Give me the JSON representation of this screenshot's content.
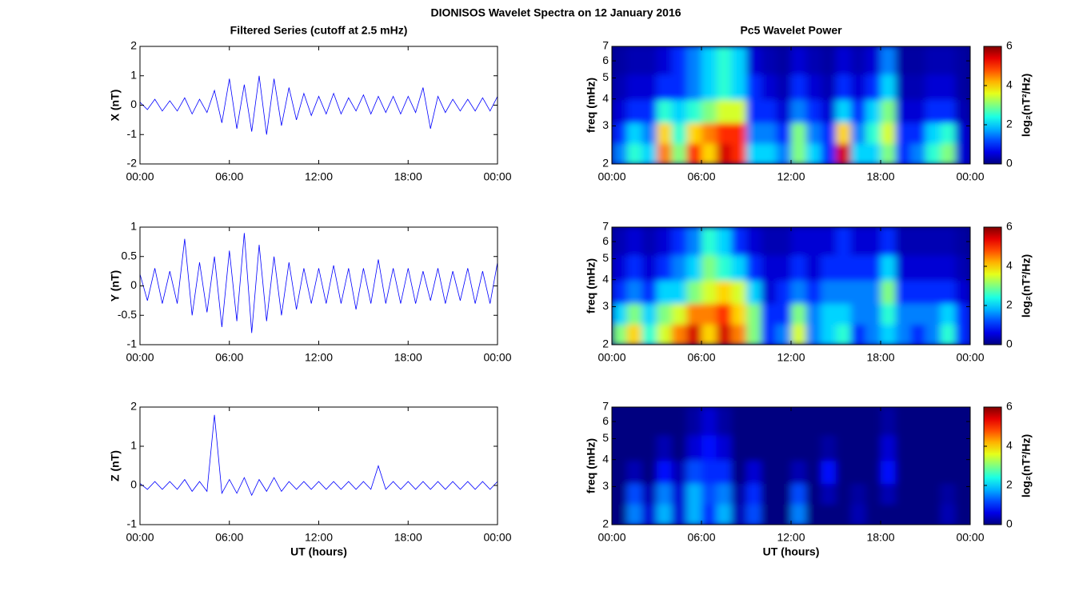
{
  "title": "DIONISOS Wavelet Spectra on 12 January 2016",
  "chart_data": [
    {
      "type": "line",
      "title": "Filtered Series (cutoff at 2.5 mHz)",
      "ylabel": "X (nT)",
      "color": "#0000ff",
      "xlim": [
        0,
        24
      ],
      "xticks": [
        {
          "value": 0,
          "label": "00:00"
        },
        {
          "value": 6,
          "label": "06:00"
        },
        {
          "value": 12,
          "label": "12:00"
        },
        {
          "value": 18,
          "label": "18:00"
        },
        {
          "value": 24,
          "label": "00:00"
        }
      ],
      "ylim": [
        -2,
        2
      ],
      "yticks": [
        -2,
        -1,
        0,
        1,
        2
      ],
      "x": [
        0,
        0.5,
        1,
        1.5,
        2,
        2.5,
        3,
        3.5,
        4,
        4.5,
        5,
        5.5,
        6,
        6.5,
        7,
        7.5,
        8,
        8.5,
        9,
        9.5,
        10,
        10.5,
        11,
        11.5,
        12,
        12.5,
        13,
        13.5,
        14,
        14.5,
        15,
        15.5,
        16,
        16.5,
        17,
        17.5,
        18,
        18.5,
        19,
        19.5,
        20,
        20.5,
        21,
        21.5,
        22,
        22.5,
        23,
        23.5,
        24
      ],
      "values": [
        0.1,
        -0.15,
        0.2,
        -0.2,
        0.15,
        -0.2,
        0.25,
        -0.3,
        0.2,
        -0.25,
        0.5,
        -0.6,
        0.9,
        -0.8,
        0.7,
        -0.9,
        1.0,
        -1.0,
        0.9,
        -0.7,
        0.6,
        -0.5,
        0.4,
        -0.35,
        0.3,
        -0.3,
        0.4,
        -0.3,
        0.25,
        -0.2,
        0.35,
        -0.3,
        0.3,
        -0.25,
        0.3,
        -0.3,
        0.3,
        -0.25,
        0.6,
        -0.8,
        0.3,
        -0.25,
        0.2,
        -0.2,
        0.2,
        -0.2,
        0.25,
        -0.2,
        0.3
      ]
    },
    {
      "type": "heatmap",
      "title": "Pc5 Wavelet Power",
      "ylabel": "freq (mHz)",
      "log_y": true,
      "colormap": "jet",
      "xlim": [
        0,
        24
      ],
      "xticks": [
        {
          "value": 0,
          "label": "00:00"
        },
        {
          "value": 6,
          "label": "06:00"
        },
        {
          "value": 12,
          "label": "12:00"
        },
        {
          "value": 18,
          "label": "18:00"
        },
        {
          "value": 24,
          "label": "00:00"
        }
      ],
      "ylim": [
        2,
        7
      ],
      "yticks": [
        2,
        3,
        4,
        5,
        6,
        7
      ],
      "x": [
        0.5,
        1.5,
        2.5,
        3.5,
        4.5,
        5.5,
        6.5,
        7.5,
        8.5,
        9.5,
        10.5,
        11.5,
        12.5,
        13.5,
        14.5,
        15.5,
        16.5,
        17.5,
        18.5,
        19.5,
        20.5,
        21.5,
        22.5,
        23.5
      ],
      "y": [
        2.25,
        2.75,
        3.5,
        4.5,
        6
      ],
      "z": [
        [
          1.5,
          2.5,
          2,
          4.5,
          3,
          5,
          4,
          5.5,
          5,
          2,
          2,
          1.5,
          3,
          2,
          1,
          5.5,
          2,
          2,
          3,
          1,
          1.5,
          2.5,
          3,
          0.5
        ],
        [
          1,
          2,
          1.5,
          4,
          2.5,
          4,
          4.5,
          5,
          5,
          1.5,
          1.5,
          1,
          3,
          1.5,
          1,
          4,
          1.5,
          2.5,
          3.5,
          1,
          1,
          2,
          2.5,
          0.5
        ],
        [
          0.5,
          1,
          1,
          2.5,
          2,
          2.5,
          3,
          3.5,
          3.5,
          1,
          1,
          0.5,
          1.5,
          1,
          0.5,
          2,
          1,
          2,
          3,
          0.5,
          0.5,
          1,
          1,
          0.3
        ],
        [
          0.3,
          0.5,
          0.5,
          1,
          1,
          1.5,
          2,
          2.5,
          2,
          1,
          0.5,
          0.3,
          1,
          0.5,
          0.3,
          1,
          0.5,
          1,
          2,
          0.3,
          0.3,
          0.5,
          0.5,
          0.2
        ],
        [
          0.2,
          0.3,
          0.3,
          0.5,
          1,
          1.5,
          2,
          2.5,
          2,
          0.5,
          0.3,
          0.2,
          0.5,
          0.3,
          0.2,
          0.5,
          0.3,
          0.5,
          1.5,
          0.2,
          0.2,
          0.3,
          0.3,
          0.2
        ]
      ],
      "colorbar": {
        "label": "log₂(nT²/Hz)",
        "clim": [
          0,
          6
        ],
        "ticks": [
          0,
          2,
          4,
          6
        ]
      }
    },
    {
      "type": "line",
      "ylabel": "Y (nT)",
      "color": "#0000ff",
      "xlim": [
        0,
        24
      ],
      "xticks": [
        {
          "value": 0,
          "label": "00:00"
        },
        {
          "value": 6,
          "label": "06:00"
        },
        {
          "value": 12,
          "label": "12:00"
        },
        {
          "value": 18,
          "label": "18:00"
        },
        {
          "value": 24,
          "label": "00:00"
        }
      ],
      "ylim": [
        -1,
        1
      ],
      "yticks": [
        -1,
        -0.5,
        0,
        0.5,
        1
      ],
      "x": [
        0,
        0.5,
        1,
        1.5,
        2,
        2.5,
        3,
        3.5,
        4,
        4.5,
        5,
        5.5,
        6,
        6.5,
        7,
        7.5,
        8,
        8.5,
        9,
        9.5,
        10,
        10.5,
        11,
        11.5,
        12,
        12.5,
        13,
        13.5,
        14,
        14.5,
        15,
        15.5,
        16,
        16.5,
        17,
        17.5,
        18,
        18.5,
        19,
        19.5,
        20,
        20.5,
        21,
        21.5,
        22,
        22.5,
        23,
        23.5,
        24
      ],
      "values": [
        0.2,
        -0.25,
        0.3,
        -0.3,
        0.25,
        -0.3,
        0.8,
        -0.5,
        0.4,
        -0.45,
        0.5,
        -0.7,
        0.6,
        -0.6,
        0.9,
        -0.8,
        0.7,
        -0.6,
        0.5,
        -0.5,
        0.4,
        -0.4,
        0.3,
        -0.3,
        0.3,
        -0.3,
        0.35,
        -0.3,
        0.3,
        -0.4,
        0.3,
        -0.3,
        0.45,
        -0.3,
        0.3,
        -0.3,
        0.3,
        -0.3,
        0.25,
        -0.25,
        0.3,
        -0.3,
        0.25,
        -0.25,
        0.3,
        -0.3,
        0.25,
        -0.3,
        0.4
      ]
    },
    {
      "type": "heatmap",
      "ylabel": "freq (mHz)",
      "log_y": true,
      "colormap": "jet",
      "xlim": [
        0,
        24
      ],
      "xticks": [
        {
          "value": 0,
          "label": "00:00"
        },
        {
          "value": 6,
          "label": "06:00"
        },
        {
          "value": 12,
          "label": "12:00"
        },
        {
          "value": 18,
          "label": "18:00"
        },
        {
          "value": 24,
          "label": "00:00"
        }
      ],
      "ylim": [
        2,
        7
      ],
      "yticks": [
        2,
        3,
        4,
        5,
        6,
        7
      ],
      "x": [
        0.5,
        1.5,
        2.5,
        3.5,
        4.5,
        5.5,
        6.5,
        7.5,
        8.5,
        9.5,
        10.5,
        11.5,
        12.5,
        13.5,
        14.5,
        15.5,
        16.5,
        17.5,
        18.5,
        19.5,
        20.5,
        21.5,
        22.5,
        23.5
      ],
      "y": [
        2.25,
        2.75,
        3.5,
        4.5,
        6
      ],
      "z": [
        [
          3,
          4,
          2.5,
          3.5,
          4.5,
          5.5,
          4,
          5.5,
          4.5,
          3,
          1,
          1.5,
          3.5,
          1.5,
          2,
          2.5,
          1,
          1.5,
          2,
          1.5,
          1,
          1.5,
          2.5,
          1
        ],
        [
          2,
          3,
          2,
          3,
          3.5,
          4.5,
          4.5,
          5,
          4,
          3,
          1,
          1,
          3,
          1.5,
          2,
          2,
          1.5,
          1.5,
          2.5,
          1.5,
          1.5,
          1.5,
          2,
          1
        ],
        [
          1,
          1.5,
          1,
          2,
          2,
          3,
          3.5,
          4,
          3.5,
          2,
          0.5,
          1,
          1.5,
          1,
          1.5,
          1.5,
          1.5,
          1.5,
          3,
          1,
          1,
          1,
          1,
          0.5
        ],
        [
          0.5,
          1,
          0.5,
          1,
          1.5,
          2,
          3,
          2.5,
          2,
          1,
          0.5,
          0.5,
          1,
          0.5,
          1,
          1,
          1,
          1,
          2,
          0.5,
          0.5,
          0.5,
          0.5,
          0.3
        ],
        [
          0.3,
          0.5,
          0.3,
          0.5,
          1,
          1.5,
          2.5,
          2,
          1,
          0.5,
          0.3,
          0.3,
          0.5,
          0.5,
          0.5,
          1,
          0.5,
          0.5,
          1,
          0.3,
          0.3,
          0.3,
          0.3,
          0.2
        ]
      ],
      "colorbar": {
        "label": "log₂(nT²/Hz)",
        "clim": [
          0,
          6
        ],
        "ticks": [
          0,
          2,
          4,
          6
        ]
      }
    },
    {
      "type": "line",
      "ylabel": "Z (nT)",
      "xlabel": "UT (hours)",
      "color": "#0000ff",
      "xlim": [
        0,
        24
      ],
      "xticks": [
        {
          "value": 0,
          "label": "00:00"
        },
        {
          "value": 6,
          "label": "06:00"
        },
        {
          "value": 12,
          "label": "12:00"
        },
        {
          "value": 18,
          "label": "18:00"
        },
        {
          "value": 24,
          "label": "00:00"
        }
      ],
      "ylim": [
        -1,
        2
      ],
      "yticks": [
        -1,
        0,
        1,
        2
      ],
      "x": [
        0,
        0.5,
        1,
        1.5,
        2,
        2.5,
        3,
        3.5,
        4,
        4.5,
        5,
        5.5,
        6,
        6.5,
        7,
        7.5,
        8,
        8.5,
        9,
        9.5,
        10,
        10.5,
        11,
        11.5,
        12,
        12.5,
        13,
        13.5,
        14,
        14.5,
        15,
        15.5,
        16,
        16.5,
        17,
        17.5,
        18,
        18.5,
        19,
        19.5,
        20,
        20.5,
        21,
        21.5,
        22,
        22.5,
        23,
        23.5,
        24
      ],
      "values": [
        0.05,
        -0.1,
        0.1,
        -0.1,
        0.1,
        -0.1,
        0.15,
        -0.15,
        0.1,
        -0.15,
        1.8,
        -0.2,
        0.15,
        -0.2,
        0.2,
        -0.25,
        0.15,
        -0.15,
        0.2,
        -0.15,
        0.1,
        -0.1,
        0.1,
        -0.1,
        0.1,
        -0.1,
        0.1,
        -0.1,
        0.1,
        -0.1,
        0.1,
        -0.1,
        0.5,
        -0.1,
        0.1,
        -0.1,
        0.1,
        -0.1,
        0.1,
        -0.1,
        0.1,
        -0.1,
        0.1,
        -0.1,
        0.1,
        -0.1,
        0.1,
        -0.1,
        0.1
      ]
    },
    {
      "type": "heatmap",
      "ylabel": "freq (mHz)",
      "xlabel": "UT (hours)",
      "log_y": true,
      "colormap": "jet",
      "xlim": [
        0,
        24
      ],
      "xticks": [
        {
          "value": 0,
          "label": "00:00"
        },
        {
          "value": 6,
          "label": "06:00"
        },
        {
          "value": 12,
          "label": "12:00"
        },
        {
          "value": 18,
          "label": "18:00"
        },
        {
          "value": 24,
          "label": "00:00"
        }
      ],
      "ylim": [
        2,
        7
      ],
      "yticks": [
        2,
        3,
        4,
        5,
        6,
        7
      ],
      "x": [
        0.5,
        1.5,
        2.5,
        3.5,
        4.5,
        5.5,
        6.5,
        7.5,
        8.5,
        9.5,
        10.5,
        11.5,
        12.5,
        13.5,
        14.5,
        15.5,
        16.5,
        17.5,
        18.5,
        19.5,
        20.5,
        21.5,
        22.5,
        23.5
      ],
      "y": [
        2.25,
        2.75,
        3.5,
        4.5,
        6
      ],
      "z": [
        [
          0,
          1.5,
          0.5,
          1.8,
          0.5,
          1.8,
          1,
          1.8,
          0.3,
          1.2,
          0,
          0,
          1.5,
          0,
          0,
          0,
          0.3,
          0,
          0,
          0,
          0,
          0,
          0.3,
          0
        ],
        [
          0,
          1.2,
          0.3,
          1.5,
          0.5,
          1.8,
          1.2,
          1.5,
          0.2,
          1,
          0,
          0,
          1.2,
          0,
          0.3,
          0,
          0.2,
          0,
          0.3,
          0,
          0,
          0,
          0.2,
          0
        ],
        [
          0,
          0.3,
          0,
          0.8,
          0.3,
          1.2,
          1,
          1,
          0,
          0.5,
          0,
          0,
          0.3,
          0,
          0.8,
          0,
          0,
          0,
          0.8,
          0,
          0,
          0,
          0,
          0
        ],
        [
          0,
          0,
          0,
          0.3,
          0,
          0.5,
          0.8,
          0.5,
          0,
          0,
          0,
          0,
          0,
          0,
          0.2,
          0,
          0,
          0,
          0.5,
          0,
          0,
          0,
          0,
          0
        ],
        [
          0,
          0,
          0,
          0,
          0,
          0.2,
          0.5,
          0.2,
          0,
          0,
          0,
          0,
          0,
          0,
          0,
          0,
          0,
          0,
          0.2,
          0,
          0,
          0,
          0,
          0
        ]
      ],
      "colorbar": {
        "label": "log₂(nT²/Hz)",
        "clim": [
          0,
          6
        ],
        "ticks": [
          0,
          2,
          4,
          6
        ]
      }
    }
  ]
}
